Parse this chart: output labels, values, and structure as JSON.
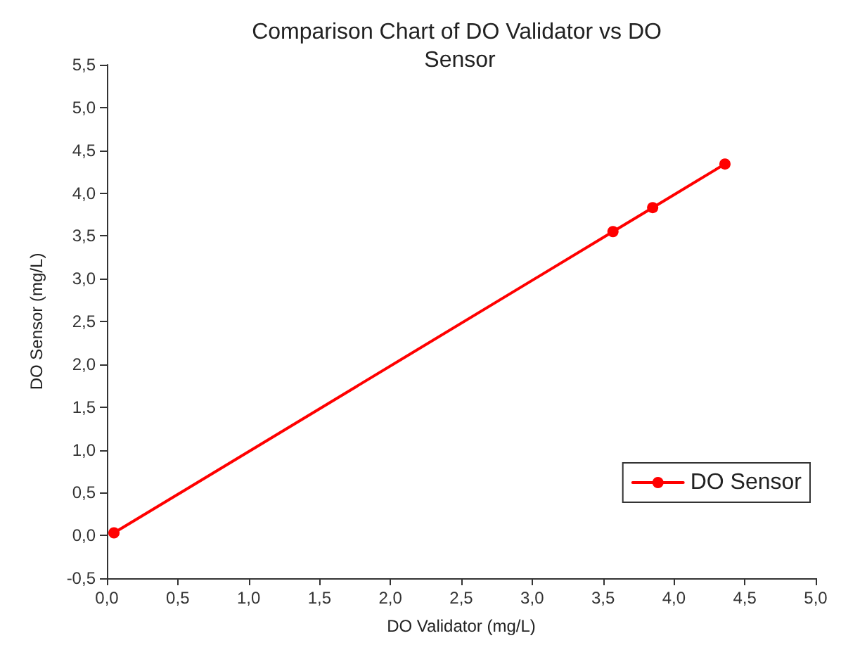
{
  "chart_data": {
    "type": "line",
    "title": "Comparison Chart of DO Validator vs DO Sensor",
    "xlabel": "DO Validator (mg/L)",
    "ylabel": "DO Sensor (mg/L)",
    "x": [
      0.05,
      3.57,
      3.85,
      4.36
    ],
    "series": [
      {
        "name": "DO Sensor",
        "color": "#ff0000",
        "values": [
          0.03,
          3.55,
          3.83,
          4.34
        ]
      }
    ],
    "xlim": [
      0,
      5
    ],
    "ylim": [
      -0.5,
      5.5
    ],
    "xticks": [
      {
        "value": 0,
        "label": "0,0"
      },
      {
        "value": 0.5,
        "label": "0,5"
      },
      {
        "value": 1,
        "label": "1,0"
      },
      {
        "value": 1.5,
        "label": "1,5"
      },
      {
        "value": 2,
        "label": "2,0"
      },
      {
        "value": 2.5,
        "label": "2,5"
      },
      {
        "value": 3,
        "label": "3,0"
      },
      {
        "value": 3.5,
        "label": "3,5"
      },
      {
        "value": 4,
        "label": "4,0"
      },
      {
        "value": 4.5,
        "label": "4,5"
      },
      {
        "value": 5,
        "label": "5,0"
      }
    ],
    "yticks": [
      {
        "value": -0.5,
        "label": "-0,5"
      },
      {
        "value": 0,
        "label": "0,0"
      },
      {
        "value": 0.5,
        "label": "0,5"
      },
      {
        "value": 1,
        "label": "1,0"
      },
      {
        "value": 1.5,
        "label": "1,5"
      },
      {
        "value": 2,
        "label": "2,0"
      },
      {
        "value": 2.5,
        "label": "2,5"
      },
      {
        "value": 3,
        "label": "3,0"
      },
      {
        "value": 3.5,
        "label": "3,5"
      },
      {
        "value": 4,
        "label": "4,0"
      },
      {
        "value": 4.5,
        "label": "4,5"
      },
      {
        "value": 5,
        "label": "5,0"
      },
      {
        "value": 5.5,
        "label": "5,5"
      }
    ],
    "grid": false,
    "legend": "bottom right",
    "marker": "circle",
    "line_style": "solid"
  }
}
